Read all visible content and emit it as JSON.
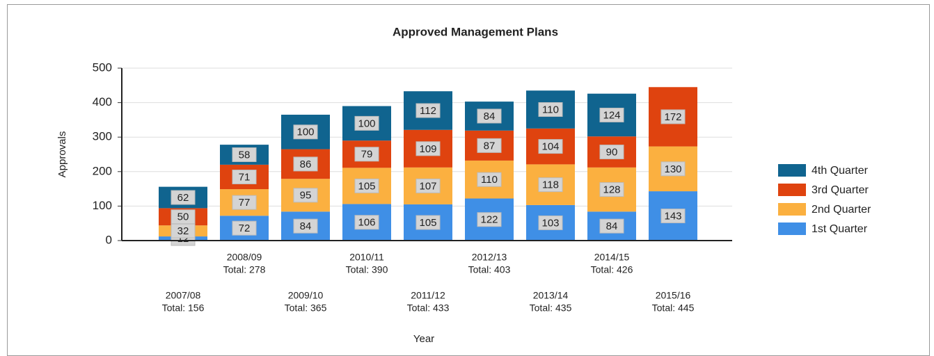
{
  "chart_data": {
    "type": "stacked_bar",
    "title": "Approved Management Plans",
    "x_label": "Year",
    "y_label": "Approvals",
    "categories": [
      "2007/08",
      "2008/09",
      "2009/10",
      "2010/11",
      "2011/12",
      "2012/13",
      "2013/14",
      "2014/15",
      "2015/16"
    ],
    "category_totals": [
      "Total: 156",
      "Total: 278",
      "Total: 365",
      "Total: 390",
      "Total: 433",
      "Total: 403",
      "Total: 435",
      "Total: 426",
      "Total: 445"
    ],
    "series": [
      {
        "name": "1st Quarter",
        "color": "#3f8fe6",
        "values": [
          12,
          72,
          84,
          106,
          105,
          122,
          103,
          84,
          143
        ]
      },
      {
        "name": "2nd Quarter",
        "color": "#fbb040",
        "values": [
          32,
          77,
          95,
          105,
          107,
          110,
          118,
          128,
          130
        ]
      },
      {
        "name": "3rd Quarter",
        "color": "#df430f",
        "values": [
          50,
          71,
          86,
          79,
          109,
          87,
          104,
          90,
          172
        ]
      },
      {
        "name": "4th Quarter",
        "color": "#10648f",
        "values": [
          62,
          58,
          100,
          100,
          112,
          84,
          110,
          124,
          null
        ]
      }
    ],
    "ylim": [
      0,
      500
    ],
    "yticks": [
      0,
      100,
      200,
      300,
      400,
      500
    ],
    "grid": true,
    "legend": "right"
  }
}
